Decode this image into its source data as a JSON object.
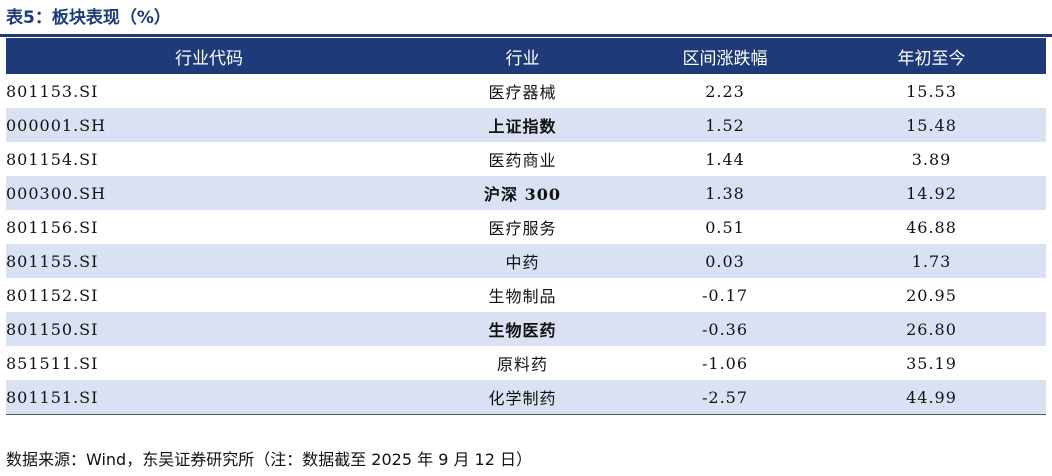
{
  "title": "表5：板块表现（%）",
  "headers": {
    "code": "行业代码",
    "industry": "行业",
    "period_change": "区间涨跌幅",
    "ytd": "年初至今"
  },
  "rows": [
    {
      "code": "801153.SI",
      "industry": "医疗器械",
      "period_change": "2.23",
      "ytd": "15.53",
      "bold": false
    },
    {
      "code": "000001.SH",
      "industry": "上证指数",
      "period_change": "1.52",
      "ytd": "15.48",
      "bold": true
    },
    {
      "code": "801154.SI",
      "industry": "医药商业",
      "period_change": "1.44",
      "ytd": "3.89",
      "bold": false
    },
    {
      "code": "000300.SH",
      "industry": "沪深 300",
      "period_change": "1.38",
      "ytd": "14.92",
      "bold": true
    },
    {
      "code": "801156.SI",
      "industry": "医疗服务",
      "period_change": "0.51",
      "ytd": "46.88",
      "bold": false
    },
    {
      "code": "801155.SI",
      "industry": "中药",
      "period_change": "0.03",
      "ytd": "1.73",
      "bold": false
    },
    {
      "code": "801152.SI",
      "industry": "生物制品",
      "period_change": "-0.17",
      "ytd": "20.95",
      "bold": false
    },
    {
      "code": "801150.SI",
      "industry": "生物医药",
      "period_change": "-0.36",
      "ytd": "26.80",
      "bold": true
    },
    {
      "code": "851511.SI",
      "industry": "原料药",
      "period_change": "-1.06",
      "ytd": "35.19",
      "bold": false
    },
    {
      "code": "801151.SI",
      "industry": "化学制药",
      "period_change": "-2.57",
      "ytd": "44.99",
      "bold": false
    }
  ],
  "source": "数据来源：Wind，东吴证券研究所（注：数据截至 2025 年 9 月 12 日）",
  "colors": {
    "header_bg": "#1f3a78",
    "stripe_bg": "#d9e1f2"
  }
}
